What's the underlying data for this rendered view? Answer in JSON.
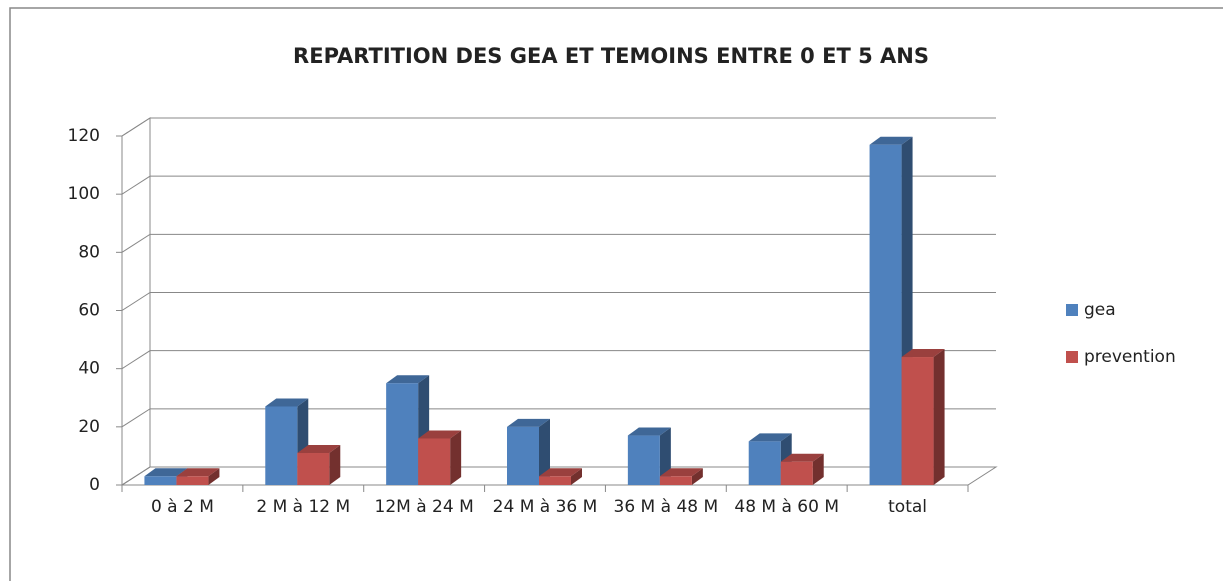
{
  "chart_data": {
    "type": "bar3d",
    "title": "REPARTITION DES GEA ET TEMOINS  ENTRE 0 ET 5 ANS",
    "categories": [
      "0 à 2 M",
      "2 M à 12 M",
      "12M à 24 M",
      "24 M à 36 M",
      "36 M à 48 M",
      "48 M à 60 M",
      "total"
    ],
    "series": [
      {
        "name": "gea",
        "color": "#4f81bd",
        "values": [
          3,
          27,
          35,
          20,
          17,
          15,
          117
        ]
      },
      {
        "name": "prevention",
        "color": "#c0504d",
        "values": [
          3,
          11,
          16,
          3,
          3,
          8,
          44
        ]
      }
    ],
    "ylim": [
      0,
      120
    ],
    "yticks": [
      0,
      20,
      40,
      60,
      80,
      100,
      120
    ],
    "grid": true,
    "legend": "right"
  }
}
